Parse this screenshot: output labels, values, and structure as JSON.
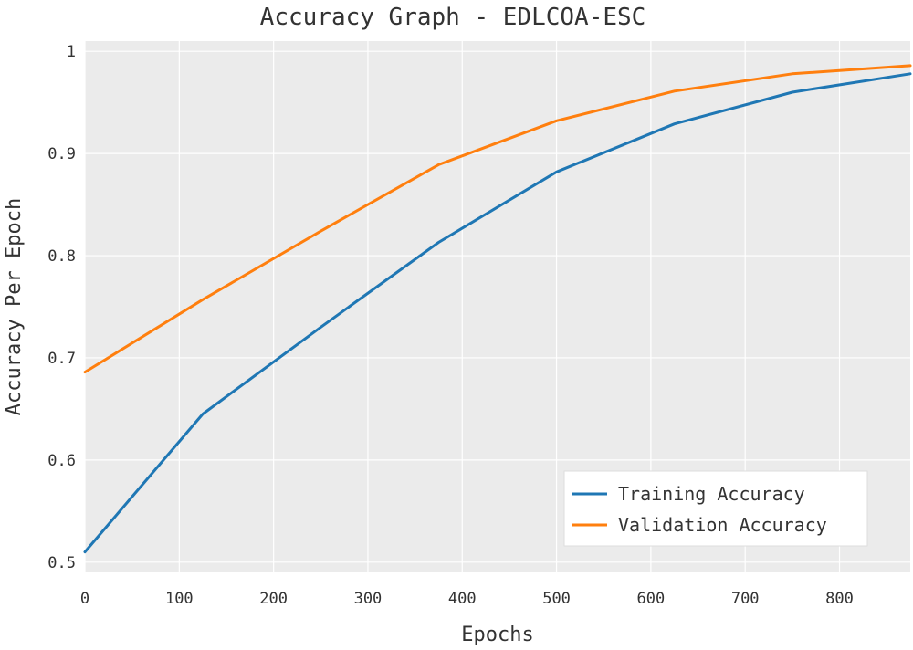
{
  "chart_data": {
    "type": "line",
    "title": "Accuracy Graph - EDLCOA-ESC",
    "xlabel": "Epochs",
    "ylabel": "Accuracy Per Epoch",
    "xlim": [
      0,
      875
    ],
    "ylim": [
      0.49,
      1.01
    ],
    "x_ticks": [
      0,
      100,
      200,
      300,
      400,
      500,
      600,
      700,
      800
    ],
    "x_tick_labels": [
      "0",
      "100",
      "200",
      "300",
      "400",
      "500",
      "600",
      "700",
      "800"
    ],
    "y_ticks": [
      0.5,
      0.6,
      0.7,
      0.8,
      0.9,
      1.0
    ],
    "y_tick_labels": [
      "0.5",
      "0.6",
      "0.7",
      "0.8",
      "0.9",
      "1"
    ],
    "grid": true,
    "legend_position": "bottom-right",
    "x": [
      0,
      125,
      250,
      375,
      500,
      625,
      750,
      875
    ],
    "series": [
      {
        "name": "Training Accuracy",
        "color": "#1f77b4",
        "values": [
          0.51,
          0.645,
          0.73,
          0.813,
          0.882,
          0.929,
          0.96,
          0.978
        ]
      },
      {
        "name": "Validation Accuracy",
        "color": "#ff7f0e",
        "values": [
          0.686,
          0.757,
          0.824,
          0.889,
          0.932,
          0.961,
          0.978,
          0.986
        ]
      }
    ],
    "background_color": "#ebebeb",
    "grid_color": "#ffffff"
  }
}
